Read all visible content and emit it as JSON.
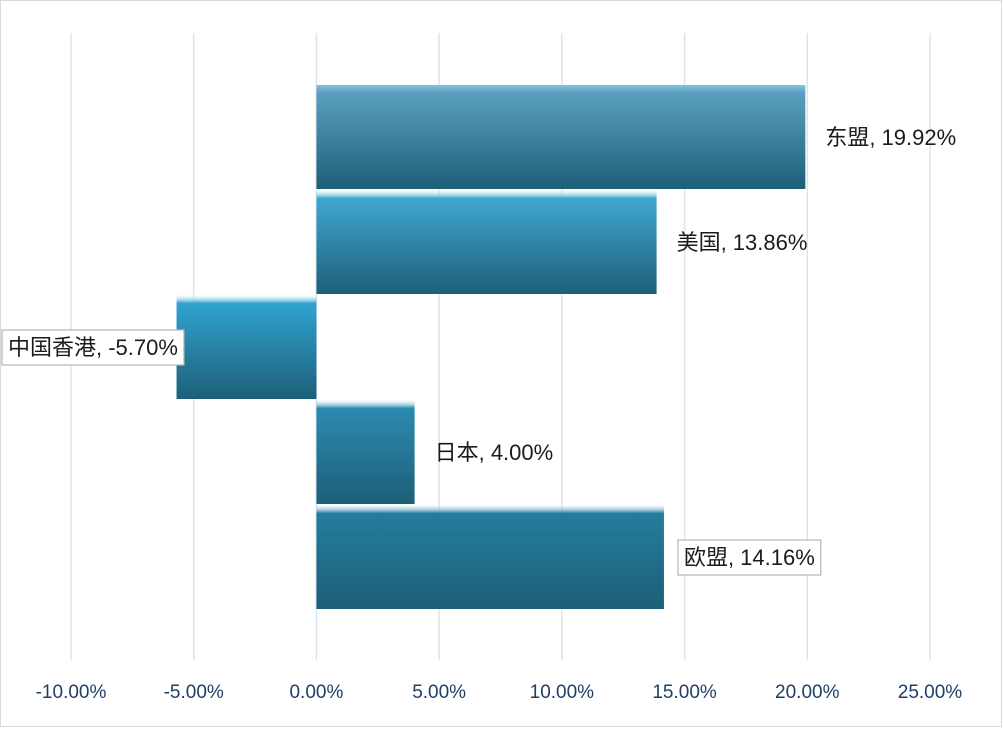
{
  "chart_data": {
    "type": "bar",
    "orientation": "horizontal",
    "title": "",
    "xlabel": "",
    "ylabel": "",
    "xlim": [
      -0.1,
      0.25
    ],
    "x_ticks": [
      -0.1,
      -0.05,
      0.0,
      0.05,
      0.1,
      0.15,
      0.2,
      0.25
    ],
    "x_tick_labels": [
      "-10.00%",
      "-5.00%",
      "0.00%",
      "5.00%",
      "10.00%",
      "15.00%",
      "20.00%",
      "25.00%"
    ],
    "grid": "vertical",
    "legend": "none",
    "categories": [
      "东盟",
      "美国",
      "中国香港",
      "日本",
      "欧盟"
    ],
    "values": [
      0.1992,
      0.1386,
      -0.057,
      0.04,
      0.1416
    ],
    "data_labels": [
      "东盟, 19.92%",
      "美国, 13.86%",
      "中国香港, -5.70%",
      "日本, 4.00%",
      "欧盟, 14.16%"
    ],
    "boxed_labels": [
      "中国香港",
      "欧盟"
    ],
    "colors": {
      "bars": [
        "#5a9fbf",
        "#3fa7cf",
        "#2fa3cf",
        "#2b8bb0",
        "#247d9d"
      ],
      "bar_highlight": "#e8f6fb",
      "bar_shadow": "#1d5f78",
      "grid": "#dde3ee",
      "tick_text": "#1f3e63",
      "label_text": "#1b1b1b",
      "frame": "#d9d9d9"
    }
  }
}
